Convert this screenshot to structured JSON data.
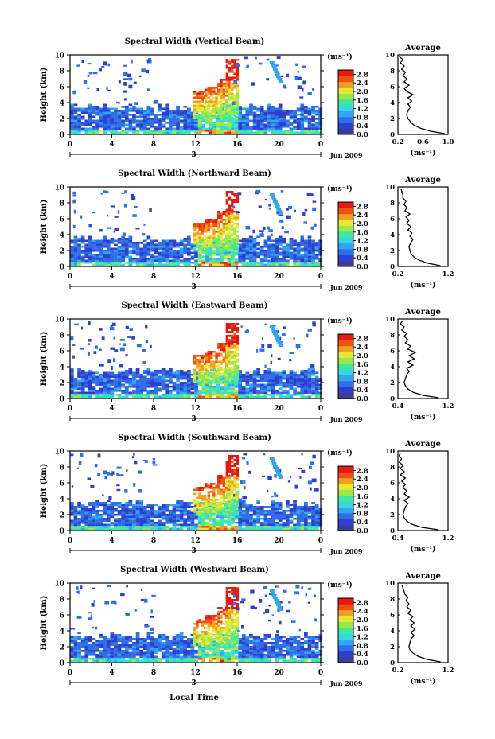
{
  "colors": {
    "background": "#ffffff",
    "axis": "#000000",
    "colorbar": [
      "#3b3b98",
      "#2f3fd0",
      "#2f6fe8",
      "#30a8f0",
      "#35d8e0",
      "#40e8a0",
      "#9be84a",
      "#e8e830",
      "#f0a020",
      "#f05010",
      "#e81810"
    ]
  },
  "shared": {
    "x_ticks": [
      "0",
      "4",
      "8",
      "12",
      "16",
      "20",
      "0"
    ],
    "y_ticks": [
      "0",
      "2",
      "4",
      "6",
      "8",
      "10"
    ],
    "ylabel": "Height (km)",
    "day_label": "3",
    "date_label": "Jun 2009",
    "xlabel": "Local Time",
    "cbar_unit": "(ms⁻¹)",
    "cbar_ticks": [
      "0.0",
      "0.4",
      "0.8",
      "1.2",
      "1.6",
      "2.0",
      "2.4",
      "2.8"
    ],
    "avg_title": "Average",
    "avg_xlabel": "(ms⁻¹)"
  },
  "chart_data": [
    {
      "type": "heatmap",
      "title": "Spectral Width (Vertical Beam)",
      "xlabel": "",
      "ylabel": "Height (km)",
      "xlim": [
        0,
        24
      ],
      "ylim": [
        0,
        10
      ],
      "colorbar_range": [
        0.0,
        3.0
      ],
      "average_profile": {
        "type": "line",
        "title": "Average",
        "xlim": [
          0.2,
          1.0
        ],
        "x_ticks": [
          "0.2",
          "0.6",
          "1.0"
        ],
        "ylim": [
          0,
          10
        ],
        "y_ticks": [
          "0",
          "2",
          "4",
          "6",
          "8",
          "10"
        ],
        "points": [
          [
            0.95,
            0.1
          ],
          [
            0.72,
            0.4
          ],
          [
            0.55,
            0.8
          ],
          [
            0.45,
            1.2
          ],
          [
            0.4,
            1.6
          ],
          [
            0.36,
            2.0
          ],
          [
            0.34,
            2.5
          ],
          [
            0.36,
            3.0
          ],
          [
            0.4,
            3.4
          ],
          [
            0.36,
            3.8
          ],
          [
            0.42,
            4.2
          ],
          [
            0.36,
            4.6
          ],
          [
            0.44,
            5.0
          ],
          [
            0.34,
            5.4
          ],
          [
            0.3,
            5.8
          ],
          [
            0.38,
            6.2
          ],
          [
            0.3,
            6.6
          ],
          [
            0.34,
            7.0
          ],
          [
            0.28,
            7.4
          ],
          [
            0.32,
            7.8
          ],
          [
            0.26,
            8.2
          ],
          [
            0.3,
            8.6
          ],
          [
            0.24,
            9.0
          ],
          [
            0.28,
            9.4
          ],
          [
            0.22,
            9.8
          ]
        ]
      }
    },
    {
      "type": "heatmap",
      "title": "Spectral Width (Northward Beam)",
      "xlabel": "",
      "ylabel": "Height (km)",
      "xlim": [
        0,
        24
      ],
      "ylim": [
        0,
        10
      ],
      "colorbar_range": [
        0.0,
        3.0
      ],
      "average_profile": {
        "type": "line",
        "title": "Average",
        "xlim": [
          0.2,
          1.2
        ],
        "x_ticks": [
          "0.2",
          "1.2"
        ],
        "ylim": [
          0,
          10
        ],
        "y_ticks": [
          "0",
          "2",
          "4",
          "6",
          "8",
          "10"
        ],
        "points": [
          [
            1.05,
            0.1
          ],
          [
            0.8,
            0.4
          ],
          [
            0.62,
            0.8
          ],
          [
            0.52,
            1.2
          ],
          [
            0.46,
            1.6
          ],
          [
            0.44,
            2.0
          ],
          [
            0.42,
            2.5
          ],
          [
            0.46,
            3.0
          ],
          [
            0.5,
            3.4
          ],
          [
            0.44,
            3.8
          ],
          [
            0.48,
            4.2
          ],
          [
            0.4,
            4.6
          ],
          [
            0.46,
            5.0
          ],
          [
            0.38,
            5.4
          ],
          [
            0.42,
            5.8
          ],
          [
            0.36,
            6.2
          ],
          [
            0.44,
            6.6
          ],
          [
            0.34,
            7.0
          ],
          [
            0.38,
            7.4
          ],
          [
            0.32,
            7.8
          ],
          [
            0.36,
            8.2
          ],
          [
            0.3,
            8.6
          ],
          [
            0.3,
            9.0
          ],
          [
            0.28,
            9.4
          ],
          [
            0.26,
            9.8
          ]
        ]
      }
    },
    {
      "type": "heatmap",
      "title": "Spectral Width (Eastward Beam)",
      "xlabel": "",
      "ylabel": "Height (km)",
      "xlim": [
        0,
        24
      ],
      "ylim": [
        0,
        10
      ],
      "colorbar_range": [
        0.0,
        3.0
      ],
      "average_profile": {
        "type": "line",
        "title": "Average",
        "xlim": [
          0.4,
          1.2
        ],
        "x_ticks": [
          "0.4",
          "1.2"
        ],
        "ylim": [
          0,
          10
        ],
        "y_ticks": [
          "0",
          "2",
          "4",
          "6",
          "8",
          "10"
        ],
        "points": [
          [
            1.05,
            0.1
          ],
          [
            0.8,
            0.4
          ],
          [
            0.64,
            0.8
          ],
          [
            0.56,
            1.2
          ],
          [
            0.52,
            1.6
          ],
          [
            0.5,
            2.0
          ],
          [
            0.52,
            2.5
          ],
          [
            0.54,
            3.0
          ],
          [
            0.58,
            3.4
          ],
          [
            0.54,
            3.8
          ],
          [
            0.64,
            4.2
          ],
          [
            0.56,
            4.6
          ],
          [
            0.66,
            5.0
          ],
          [
            0.58,
            5.4
          ],
          [
            0.68,
            5.8
          ],
          [
            0.56,
            6.2
          ],
          [
            0.6,
            6.6
          ],
          [
            0.52,
            7.0
          ],
          [
            0.56,
            7.4
          ],
          [
            0.5,
            7.8
          ],
          [
            0.54,
            8.2
          ],
          [
            0.46,
            8.6
          ],
          [
            0.5,
            9.0
          ],
          [
            0.44,
            9.4
          ],
          [
            0.48,
            9.8
          ]
        ]
      }
    },
    {
      "type": "heatmap",
      "title": "Spectral Width (Southward Beam)",
      "xlabel": "",
      "ylabel": "Height (km)",
      "xlim": [
        0,
        24
      ],
      "ylim": [
        0,
        10
      ],
      "colorbar_range": [
        0.0,
        3.0
      ],
      "average_profile": {
        "type": "line",
        "title": "Average",
        "xlim": [
          0.4,
          1.2
        ],
        "x_ticks": [
          "0.4",
          "1.2"
        ],
        "ylim": [
          0,
          10
        ],
        "y_ticks": [
          "0",
          "2",
          "4",
          "6",
          "8",
          "10"
        ],
        "points": [
          [
            1.05,
            0.1
          ],
          [
            0.78,
            0.4
          ],
          [
            0.62,
            0.8
          ],
          [
            0.54,
            1.2
          ],
          [
            0.5,
            1.6
          ],
          [
            0.48,
            2.0
          ],
          [
            0.5,
            2.5
          ],
          [
            0.52,
            3.0
          ],
          [
            0.56,
            3.4
          ],
          [
            0.5,
            3.8
          ],
          [
            0.58,
            4.2
          ],
          [
            0.5,
            4.6
          ],
          [
            0.54,
            5.0
          ],
          [
            0.48,
            5.4
          ],
          [
            0.52,
            5.8
          ],
          [
            0.46,
            6.2
          ],
          [
            0.52,
            6.6
          ],
          [
            0.44,
            7.0
          ],
          [
            0.5,
            7.4
          ],
          [
            0.44,
            7.8
          ],
          [
            0.48,
            8.2
          ],
          [
            0.42,
            8.6
          ],
          [
            0.46,
            9.0
          ],
          [
            0.42,
            9.4
          ],
          [
            0.44,
            9.8
          ]
        ]
      }
    },
    {
      "type": "heatmap",
      "title": "Spectral Width (Westward Beam)",
      "xlabel": "Local Time",
      "ylabel": "Height (km)",
      "xlim": [
        0,
        24
      ],
      "ylim": [
        0,
        10
      ],
      "colorbar_range": [
        0.0,
        3.0
      ],
      "average_profile": {
        "type": "line",
        "title": "Average",
        "xlim": [
          0.2,
          1.2
        ],
        "x_ticks": [
          "0.2",
          "1.2"
        ],
        "ylim": [
          0,
          10
        ],
        "y_ticks": [
          "0",
          "2",
          "4",
          "6",
          "8",
          "10"
        ],
        "points": [
          [
            1.05,
            0.1
          ],
          [
            0.78,
            0.4
          ],
          [
            0.6,
            0.8
          ],
          [
            0.5,
            1.2
          ],
          [
            0.44,
            1.6
          ],
          [
            0.42,
            2.0
          ],
          [
            0.44,
            2.5
          ],
          [
            0.46,
            3.0
          ],
          [
            0.52,
            3.4
          ],
          [
            0.46,
            3.8
          ],
          [
            0.54,
            4.2
          ],
          [
            0.46,
            4.6
          ],
          [
            0.52,
            5.0
          ],
          [
            0.44,
            5.4
          ],
          [
            0.5,
            5.8
          ],
          [
            0.4,
            6.2
          ],
          [
            0.46,
            6.6
          ],
          [
            0.38,
            7.0
          ],
          [
            0.42,
            7.4
          ],
          [
            0.36,
            7.8
          ],
          [
            0.4,
            8.2
          ],
          [
            0.34,
            8.6
          ],
          [
            0.32,
            9.0
          ],
          [
            0.3,
            9.4
          ],
          [
            0.28,
            9.8
          ]
        ]
      }
    }
  ]
}
